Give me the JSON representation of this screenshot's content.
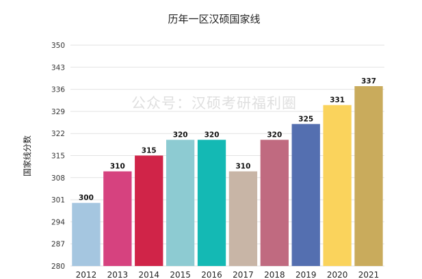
{
  "watermark": "公众号：汉硕考研福利圈",
  "chart_data": {
    "type": "bar",
    "title": "历年一区汉硕国家线",
    "xlabel": "",
    "ylabel": "国家线分数",
    "categories": [
      "2012",
      "2013",
      "2014",
      "2015",
      "2016",
      "2017",
      "2018",
      "2019",
      "2020",
      "2021"
    ],
    "values": [
      300,
      310,
      315,
      320,
      320,
      310,
      320,
      325,
      331,
      337
    ],
    "data_labels": [
      "300",
      "310",
      "315",
      "320",
      "320",
      "310",
      "320",
      "325",
      "331",
      "337"
    ],
    "y_ticks": [
      "280",
      "287",
      "294",
      "301",
      "308",
      "315",
      "322",
      "329",
      "336",
      "343",
      "350"
    ],
    "ylim": [
      280,
      350
    ],
    "grid": true,
    "legend": "none",
    "bar_colors": [
      "#a5c6e0",
      "#d6427f",
      "#d02448",
      "#8dcbd2",
      "#14b9b4",
      "#c8b5a6",
      "#c06a80",
      "#546fb0",
      "#fad35c",
      "#c9ab5c"
    ]
  }
}
